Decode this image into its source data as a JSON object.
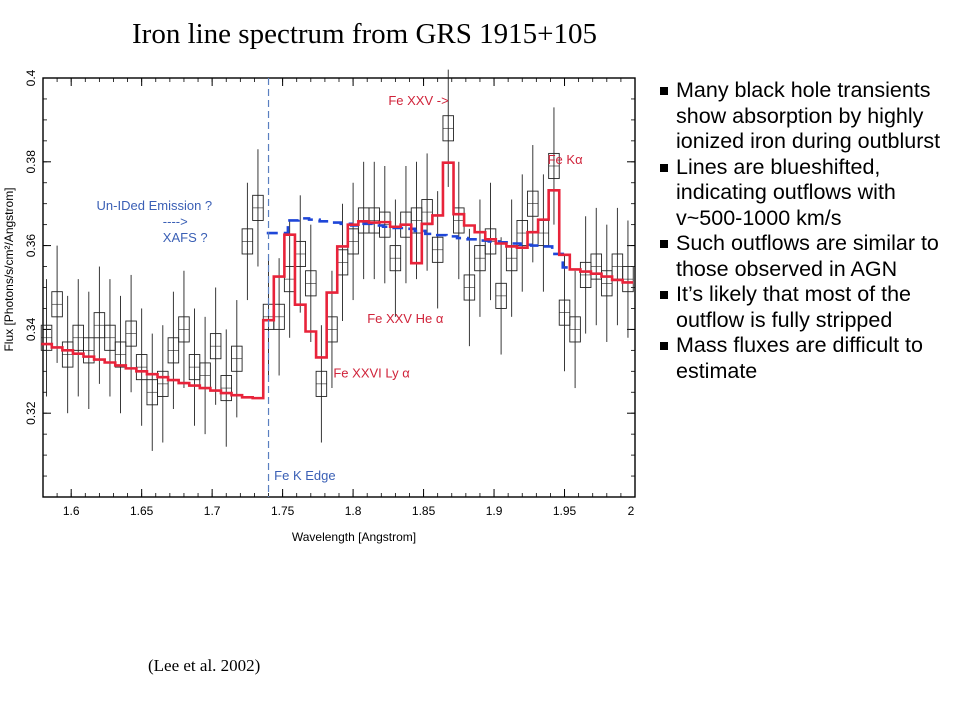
{
  "slide": {
    "title": "Iron line spectrum from GRS 1915+105",
    "citation": "(Lee et al. 2002)"
  },
  "bullets": [
    "Many black hole transients show absorption by highly ionized iron during outblurst",
    "Lines are blueshifted, indicating outflows with v~500-1000 km/s",
    "Such outflows are similar to those observed in AGN",
    "It’s likely that most of the outflow is fully stripped",
    "Mass fluxes are difficult to estimate"
  ],
  "chart_data": {
    "type": "line",
    "xlabel": "Wavelength [Angstrom]",
    "ylabel": "Flux [Photons/s/cm²/Angstrom]",
    "xlim": [
      1.58,
      2.0
    ],
    "ylim": [
      0.3,
      0.4
    ],
    "xticks": [
      "1.6",
      "1.65",
      "1.7",
      "1.75",
      "1.8",
      "1.85",
      "1.9",
      "1.95",
      "2"
    ],
    "yticks": [
      "0.32",
      "0.34",
      "0.36",
      "0.38",
      "0.4"
    ],
    "colors": {
      "data": "#000000",
      "model": "#e8233a",
      "continuum": "#1e46d8",
      "edge_line": "#5a7fc0",
      "label_blue": "#3a5fb5",
      "label_red": "#d0233a"
    },
    "bin_width": 0.0075,
    "series": [
      {
        "role": "data",
        "x": [
          1.5825,
          1.59,
          1.5975,
          1.605,
          1.6125,
          1.62,
          1.6275,
          1.635,
          1.6425,
          1.65,
          1.6575,
          1.665,
          1.6725,
          1.68,
          1.6875,
          1.695,
          1.7025,
          1.71,
          1.7175,
          1.725,
          1.7325,
          1.74,
          1.7475,
          1.755,
          1.7625,
          1.77,
          1.7775,
          1.785,
          1.7925,
          1.8,
          1.8075,
          1.815,
          1.8225,
          1.83,
          1.8375,
          1.845,
          1.8525,
          1.86,
          1.8675,
          1.875,
          1.8825,
          1.89,
          1.8975,
          1.905,
          1.9125,
          1.92,
          1.9275,
          1.935,
          1.9425,
          1.95,
          1.9575,
          1.965,
          1.9725,
          1.98,
          1.9875,
          1.995
        ],
        "y": [
          0.338,
          0.346,
          0.334,
          0.338,
          0.335,
          0.341,
          0.338,
          0.334,
          0.339,
          0.331,
          0.325,
          0.327,
          0.335,
          0.34,
          0.331,
          0.329,
          0.336,
          0.326,
          0.333,
          0.361,
          0.369,
          0.343,
          0.343,
          0.352,
          0.358,
          0.351,
          0.327,
          0.34,
          0.356,
          0.361,
          0.366,
          0.366,
          0.365,
          0.357,
          0.365,
          0.366,
          0.368,
          0.359,
          0.388,
          0.366,
          0.35,
          0.357,
          0.361,
          0.348,
          0.357,
          0.363,
          0.37,
          0.363,
          0.379,
          0.344,
          0.34,
          0.353,
          0.355,
          0.351,
          0.355,
          0.352
        ],
        "err": [
          0.014,
          0.014,
          0.014,
          0.014,
          0.014,
          0.014,
          0.014,
          0.014,
          0.014,
          0.014,
          0.014,
          0.014,
          0.014,
          0.014,
          0.014,
          0.014,
          0.014,
          0.014,
          0.014,
          0.014,
          0.014,
          0.014,
          0.014,
          0.014,
          0.014,
          0.014,
          0.014,
          0.014,
          0.014,
          0.014,
          0.014,
          0.014,
          0.014,
          0.014,
          0.014,
          0.014,
          0.014,
          0.014,
          0.014,
          0.014,
          0.014,
          0.014,
          0.014,
          0.014,
          0.014,
          0.014,
          0.014,
          0.014,
          0.014,
          0.014,
          0.014,
          0.014,
          0.014,
          0.014,
          0.014,
          0.014
        ]
      },
      {
        "role": "model",
        "x": [
          1.5825,
          1.59,
          1.5975,
          1.605,
          1.6125,
          1.62,
          1.6275,
          1.635,
          1.6425,
          1.65,
          1.6575,
          1.665,
          1.6725,
          1.68,
          1.6875,
          1.695,
          1.7025,
          1.71,
          1.7175,
          1.725,
          1.7325,
          1.74,
          1.7475,
          1.755,
          1.7625,
          1.77,
          1.7775,
          1.785,
          1.7925,
          1.8,
          1.8075,
          1.815,
          1.8225,
          1.83,
          1.8375,
          1.845,
          1.8525,
          1.86,
          1.8675,
          1.875,
          1.8825,
          1.89,
          1.8975,
          1.905,
          1.9125,
          1.92,
          1.9275,
          1.935,
          1.9425,
          1.95,
          1.9575,
          1.965,
          1.9725,
          1.98,
          1.9875,
          1.995
        ],
        "y": [
          0.3365,
          0.3357,
          0.335,
          0.3342,
          0.3335,
          0.3328,
          0.3321,
          0.3314,
          0.3307,
          0.33,
          0.3293,
          0.3286,
          0.3279,
          0.3272,
          0.3266,
          0.326,
          0.3254,
          0.3248,
          0.3243,
          0.3238,
          0.3236,
          0.3422,
          0.3526,
          0.3626,
          0.3459,
          0.3395,
          0.3333,
          0.3488,
          0.3598,
          0.365,
          0.3658,
          0.3655,
          0.3656,
          0.3645,
          0.365,
          0.3558,
          0.3652,
          0.3672,
          0.3798,
          0.3675,
          0.3648,
          0.3632,
          0.3615,
          0.3605,
          0.3598,
          0.3595,
          0.3632,
          0.3662,
          0.3732,
          0.3578,
          0.3543,
          0.3538,
          0.3533,
          0.3526,
          0.3518,
          0.3512
        ]
      },
      {
        "role": "continuum",
        "x": [
          1.7425,
          1.75,
          1.7575,
          1.765,
          1.7725,
          1.78,
          1.7875,
          1.795,
          1.8025,
          1.81,
          1.8175,
          1.825,
          1.8325,
          1.84,
          1.8475,
          1.855,
          1.8625,
          1.87,
          1.8775,
          1.885,
          1.8925,
          1.9,
          1.9075,
          1.915,
          1.9225,
          1.93,
          1.9375,
          1.945,
          1.9525
        ],
        "y": [
          0.363,
          0.363,
          0.366,
          0.3665,
          0.3662,
          0.3658,
          0.3655,
          0.3652,
          0.3648,
          0.3652,
          0.3648,
          0.3645,
          0.3642,
          0.364,
          0.3635,
          0.3628,
          0.3625,
          0.3622,
          0.3618,
          0.3615,
          0.3612,
          0.361,
          0.3608,
          0.3605,
          0.3602,
          0.36,
          0.3598,
          0.358,
          0.3548
        ]
      }
    ],
    "annotations": [
      {
        "text": "Fe XXV  ->",
        "x": 1.825,
        "y": 0.3935,
        "color": "red"
      },
      {
        "text": "Fe Kα",
        "x": 1.938,
        "y": 0.3795,
        "color": "red"
      },
      {
        "text": "Un-IDed Emission ?",
        "x": 1.618,
        "y": 0.3685,
        "color": "blue"
      },
      {
        "text": "---->",
        "x": 1.665,
        "y": 0.3647,
        "color": "blue"
      },
      {
        "text": "XAFS ?",
        "x": 1.665,
        "y": 0.3608,
        "color": "blue"
      },
      {
        "text": "Fe XXV He α",
        "x": 1.81,
        "y": 0.3415,
        "color": "red"
      },
      {
        "text": "Fe XXVI Ly α",
        "x": 1.786,
        "y": 0.3285,
        "color": "red"
      },
      {
        "text": "Fe K Edge",
        "x": 1.744,
        "y": 0.304,
        "color": "blue"
      }
    ],
    "edge_x": 1.74,
    "grid": false
  }
}
